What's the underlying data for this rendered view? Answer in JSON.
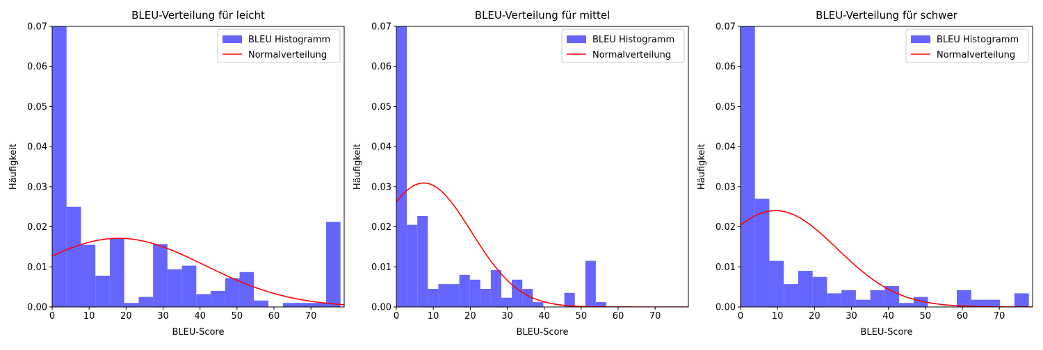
{
  "chart_data": [
    {
      "type": "bar",
      "title": "BLEU-Verteilung für leicht",
      "xlabel": "BLEU-Score",
      "ylabel": "Häufigkeit",
      "xlim": [
        0,
        79
      ],
      "ylim": [
        0,
        0.07
      ],
      "grid": false,
      "legend_position": "top-right",
      "xticks": [
        "0",
        "10",
        "20",
        "30",
        "40",
        "50",
        "60",
        "70"
      ],
      "yticks": [
        "0.00",
        "0.01",
        "0.02",
        "0.03",
        "0.04",
        "0.05",
        "0.06",
        "0.07"
      ],
      "bin_width": 3.9,
      "bin_starts": [
        0,
        3.9,
        7.8,
        11.7,
        15.6,
        19.5,
        23.4,
        27.3,
        31.2,
        35.1,
        39,
        42.9,
        46.8,
        50.7,
        54.6,
        58.5,
        62.4,
        66.3,
        70.2,
        74.1
      ],
      "series": [
        {
          "name": "BLEU Histogramm",
          "color": "#6666ff",
          "values": [
            0.071,
            0.025,
            0.0155,
            0.0078,
            0.0172,
            0.001,
            0.0025,
            0.0157,
            0.0094,
            0.0103,
            0.0032,
            0.004,
            0.0072,
            0.0087,
            0.0016,
            0.0,
            0.001,
            0.001,
            0.001,
            0.0212
          ]
        },
        {
          "name": "Normalverteilung",
          "color": "#ff0000",
          "mean": 18,
          "std": 23.3
        }
      ]
    },
    {
      "type": "bar",
      "title": "BLEU-Verteilung für mittel",
      "xlabel": "BLEU-Score",
      "ylabel": "Häufigkeit",
      "xlim": [
        0,
        79
      ],
      "ylim": [
        0,
        0.07
      ],
      "grid": false,
      "legend_position": "top-right",
      "xticks": [
        "0",
        "10",
        "20",
        "30",
        "40",
        "50",
        "60",
        "70"
      ],
      "yticks": [
        "0.00",
        "0.01",
        "0.02",
        "0.03",
        "0.04",
        "0.05",
        "0.06",
        "0.07"
      ],
      "bin_width": 2.84,
      "bin_starts": [
        0,
        2.84,
        5.68,
        8.52,
        11.36,
        14.2,
        17.04,
        19.88,
        22.72,
        25.56,
        28.4,
        31.24,
        34.08,
        36.92,
        39.76,
        42.6,
        45.44,
        48.28,
        51.12,
        53.96
      ],
      "series": [
        {
          "name": "BLEU Histogramm",
          "color": "#6666ff",
          "values": [
            0.071,
            0.0205,
            0.0227,
            0.0045,
            0.0057,
            0.0057,
            0.008,
            0.0068,
            0.0045,
            0.0092,
            0.0023,
            0.0068,
            0.0045,
            0.0012,
            0.0,
            0.0,
            0.0035,
            0.0,
            0.0115,
            0.0012
          ]
        },
        {
          "name": "Normalverteilung",
          "color": "#ff0000",
          "mean": 7.4,
          "std": 12.9
        }
      ]
    },
    {
      "type": "bar",
      "title": "BLEU-Verteilung für schwer",
      "xlabel": "BLEU-Score",
      "ylabel": "Häufigkeit",
      "xlim": [
        0,
        79
      ],
      "ylim": [
        0,
        0.07
      ],
      "grid": false,
      "legend_position": "top-right",
      "xticks": [
        "0",
        "10",
        "20",
        "30",
        "40",
        "50",
        "60",
        "70"
      ],
      "yticks": [
        "0.00",
        "0.01",
        "0.02",
        "0.03",
        "0.04",
        "0.05",
        "0.06",
        "0.07"
      ],
      "bin_width": 3.9,
      "bin_starts": [
        0,
        3.9,
        7.8,
        11.7,
        15.6,
        19.5,
        23.4,
        27.3,
        31.2,
        35.1,
        39,
        42.9,
        46.8,
        50.7,
        54.6,
        58.5,
        62.4,
        66.3,
        70.2,
        74.1
      ],
      "series": [
        {
          "name": "BLEU Histogramm",
          "color": "#6666ff",
          "values": [
            0.071,
            0.027,
            0.0115,
            0.0057,
            0.009,
            0.0075,
            0.0034,
            0.0042,
            0.0018,
            0.0042,
            0.0052,
            0.001,
            0.0025,
            0.0,
            0.0,
            0.0042,
            0.0018,
            0.0018,
            0.0,
            0.0034
          ]
        },
        {
          "name": "Normalverteilung",
          "color": "#ff0000",
          "mean": 9.5,
          "std": 16.6
        }
      ]
    }
  ]
}
